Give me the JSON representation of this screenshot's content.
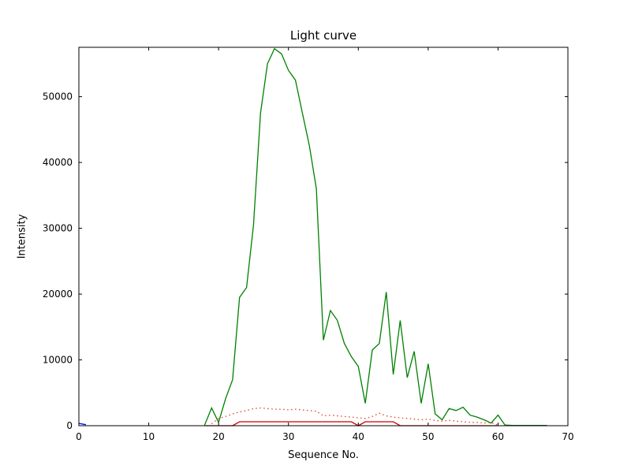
{
  "figure": {
    "title": "Light curve",
    "xlabel": "Sequence No.",
    "ylabel": "Intensity"
  },
  "chart_data": {
    "type": "line",
    "title": "Light curve",
    "xlabel": "Sequence No.",
    "ylabel": "Intensity",
    "xlim": [
      0,
      70
    ],
    "ylim": [
      0,
      57500
    ],
    "xticks": [
      0,
      10,
      20,
      30,
      40,
      50,
      60,
      70
    ],
    "yticks": [
      0,
      10000,
      20000,
      30000,
      40000,
      50000
    ],
    "grid": false,
    "legend": null,
    "series": [
      {
        "name": "green-solid",
        "color": "#008000",
        "style": "solid",
        "x": [
          18,
          19,
          20,
          21,
          22,
          23,
          24,
          25,
          26,
          27,
          28,
          29,
          30,
          31,
          32,
          33,
          34,
          35,
          36,
          37,
          38,
          39,
          40,
          41,
          42,
          43,
          44,
          45,
          46,
          47,
          48,
          49,
          50,
          51,
          52,
          53,
          54,
          55,
          56,
          57,
          58,
          59,
          60,
          61,
          62,
          63,
          64,
          65,
          66,
          67
        ],
        "y": [
          100,
          2700,
          500,
          4100,
          7000,
          19500,
          21000,
          30500,
          47500,
          55000,
          57300,
          56500,
          54000,
          52500,
          47500,
          42500,
          36000,
          13000,
          17500,
          16000,
          12500,
          10500,
          9000,
          3400,
          11500,
          12500,
          20300,
          7800,
          16000,
          7300,
          11300,
          3400,
          9400,
          1800,
          900,
          2600,
          2300,
          2800,
          1600,
          1300,
          900,
          400,
          1600,
          100,
          50,
          50,
          50,
          50,
          50,
          50
        ]
      },
      {
        "name": "red-dotted",
        "color": "#dd4422",
        "style": "dotted",
        "x": [
          19,
          20,
          21,
          22,
          23,
          24,
          25,
          26,
          27,
          28,
          29,
          30,
          31,
          32,
          33,
          34,
          35,
          36,
          37,
          38,
          39,
          40,
          41,
          42,
          43,
          44,
          45,
          46,
          47,
          48,
          49,
          50,
          51,
          52,
          53,
          54,
          55,
          56,
          57,
          58,
          59,
          60
        ],
        "y": [
          300,
          1100,
          1400,
          1800,
          2100,
          2300,
          2600,
          2700,
          2600,
          2500,
          2500,
          2400,
          2500,
          2400,
          2300,
          2200,
          1500,
          1600,
          1500,
          1400,
          1300,
          1200,
          1100,
          1400,
          1900,
          1500,
          1300,
          1200,
          1100,
          1000,
          900,
          1000,
          800,
          700,
          800,
          700,
          600,
          500,
          500,
          400,
          500,
          100
        ]
      },
      {
        "name": "red-solid",
        "color": "#cc0000",
        "style": "solid",
        "x": [
          18,
          19,
          20,
          21,
          22,
          23,
          24,
          25,
          26,
          27,
          28,
          29,
          30,
          31,
          32,
          33,
          34,
          35,
          36,
          37,
          38,
          39,
          40,
          41,
          42,
          43,
          44,
          45,
          46,
          47,
          48,
          49,
          50,
          51,
          52,
          53,
          54,
          55,
          56,
          57,
          58,
          59,
          60
        ],
        "y": [
          0,
          0,
          0,
          0,
          0,
          600,
          600,
          600,
          600,
          600,
          600,
          600,
          600,
          600,
          600,
          600,
          600,
          600,
          600,
          600,
          600,
          600,
          0,
          600,
          600,
          600,
          600,
          600,
          0,
          0,
          0,
          0,
          0,
          0,
          0,
          0,
          0,
          0,
          0,
          0,
          0,
          0,
          0
        ]
      },
      {
        "name": "blue-solid",
        "color": "#0000ff",
        "style": "solid",
        "x": [
          0,
          1
        ],
        "y": [
          350,
          150
        ]
      }
    ]
  }
}
